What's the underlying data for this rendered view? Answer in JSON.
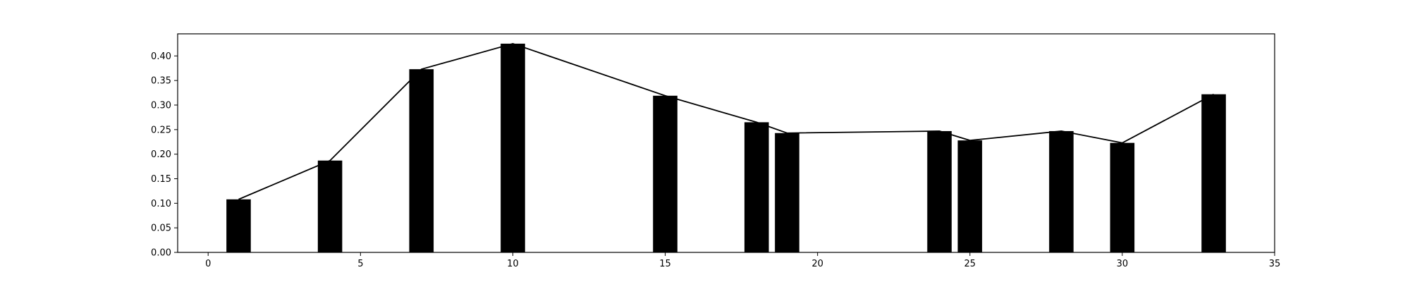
{
  "chart_data": {
    "type": "bar",
    "title": "",
    "xlabel": "",
    "ylabel": "",
    "xlim": [
      -1,
      35
    ],
    "ylim": [
      0,
      0.445
    ],
    "x_ticks": [
      0,
      5,
      10,
      15,
      20,
      25,
      30,
      35
    ],
    "x_tick_labels": [
      "0",
      "5",
      "10",
      "15",
      "20",
      "25",
      "30",
      "35"
    ],
    "y_ticks": [
      0.0,
      0.05,
      0.1,
      0.15,
      0.2,
      0.25,
      0.3,
      0.35,
      0.4
    ],
    "y_tick_labels": [
      "0.00",
      "0.05",
      "0.10",
      "0.15",
      "0.20",
      "0.25",
      "0.30",
      "0.35",
      "0.40"
    ],
    "grid": false,
    "bar_width": 0.8,
    "bar_color": "#000000",
    "line_color": "#000000",
    "x": [
      1,
      4,
      7,
      10,
      15,
      18,
      19,
      24,
      25,
      28,
      30,
      33
    ],
    "values": [
      0.108,
      0.187,
      0.373,
      0.425,
      0.319,
      0.265,
      0.243,
      0.247,
      0.228,
      0.247,
      0.223,
      0.322
    ]
  }
}
